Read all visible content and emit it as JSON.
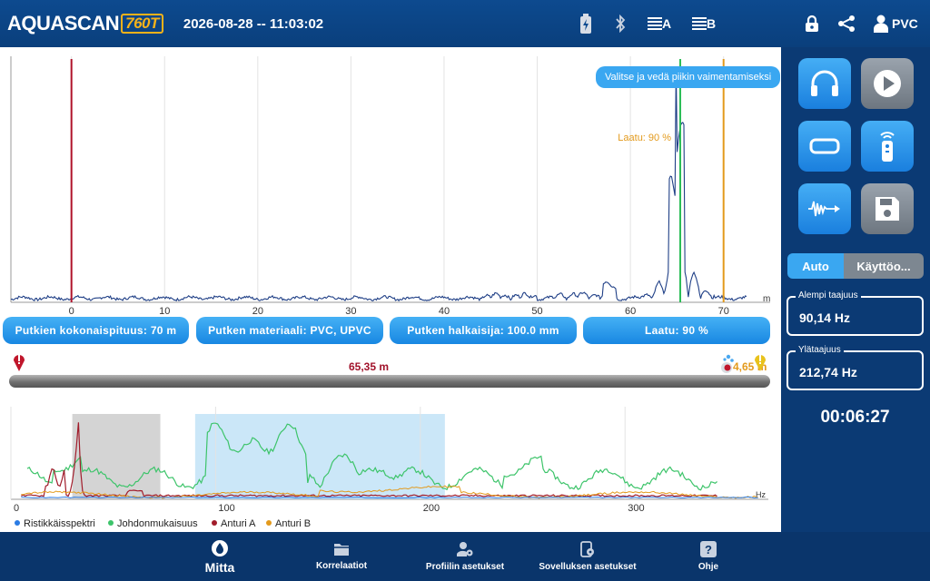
{
  "header": {
    "brand": "AQUASCAN",
    "model": "760T",
    "datetime": "2026-08-28 -- 11:03:02",
    "channel_a": "A",
    "channel_b": "B",
    "material_short": "PVC"
  },
  "top_chart": {
    "hint": "Valitse ja vedä piikin vaimentamiseksi",
    "quality_label": "Laatu: 90 %",
    "x_unit": "m",
    "x_ticks": [
      "0",
      "10",
      "20",
      "30",
      "40",
      "50",
      "60",
      "70"
    ],
    "x_range": [
      -6.5,
      75
    ],
    "red_marker_m": 0,
    "peak_marker_m": 65.35,
    "orange_marker_m": 70,
    "colors": {
      "line": "#1f3f86",
      "red": "#b0122a",
      "green": "#2bbd57",
      "orange": "#e39a1c",
      "peak": "#0f6b46"
    }
  },
  "info": {
    "length": "Putkien kokonaispituus: 70 m",
    "material": "Putken materiaali: PVC, UPVC",
    "diameter": "Putken halkaisija: 100.0 mm",
    "quality": "Laatu: 90 %"
  },
  "distance": {
    "value": "65,35 m",
    "remaining": "4,65 m"
  },
  "bottom_chart": {
    "x_unit": "Hz",
    "x_ticks": [
      "0",
      "100",
      "200",
      "300"
    ],
    "x_range": [
      0,
      370
    ],
    "gray_band": [
      30,
      73
    ],
    "blue_band": [
      90,
      212
    ],
    "legend": [
      {
        "label": "Ristikkäisspektri",
        "color": "#2a7be4"
      },
      {
        "label": "Johdonmukaisuus",
        "color": "#3dc46a"
      },
      {
        "label": "Anturi A",
        "color": "#a11c2b"
      },
      {
        "label": "Anturi B",
        "color": "#e39a1c"
      }
    ]
  },
  "sidebar": {
    "mode_auto": "Auto",
    "mode_manual": "Käyttöo...",
    "low_freq_label": "Alempi taajuus",
    "low_freq_value": "90,14 Hz",
    "high_freq_label": "Ylätaajuus",
    "high_freq_value": "212,74 Hz",
    "timer": "00:06:27"
  },
  "nav": {
    "measure": "Mitta",
    "correlations": "Korrelaatiot",
    "profile_settings": "Profiilin asetukset",
    "app_settings": "Sovelluksen asetukset",
    "help": "Ohje"
  }
}
